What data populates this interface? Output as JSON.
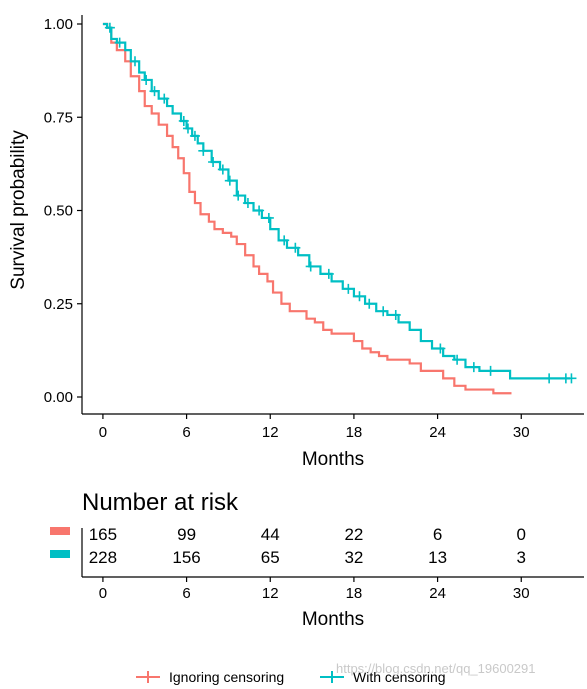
{
  "chart_data": [
    {
      "type": "line",
      "subtype": "kaplan-meier step",
      "xlabel": "Months",
      "ylabel": "Survival probability",
      "xlim": [
        -1.5,
        34.5
      ],
      "ylim": [
        0,
        1
      ],
      "xticks": [
        0,
        6,
        12,
        18,
        24,
        30
      ],
      "yticks": [
        "0.00",
        "0.25",
        "0.50",
        "0.75",
        "1.00"
      ],
      "grid": false,
      "legend_position": "bottom",
      "series": [
        {
          "name": "Ignoring censoring",
          "color": "#F8766D",
          "x": [
            0,
            0.3,
            0.6,
            1.0,
            1.6,
            2.0,
            2.6,
            3.0,
            3.5,
            4.0,
            4.6,
            5.0,
            5.4,
            5.8,
            6.2,
            6.6,
            7.0,
            7.6,
            8.0,
            8.6,
            9.2,
            9.6,
            10.2,
            10.8,
            11.2,
            11.8,
            12.2,
            12.8,
            13.4,
            14.0,
            14.6,
            15.2,
            15.8,
            16.4,
            17.2,
            18.0,
            18.6,
            19.2,
            19.8,
            20.4,
            21.2,
            22.0,
            22.8,
            23.6,
            24.4,
            25.2,
            26.0,
            27.0,
            28.0,
            29.3
          ],
          "y": [
            1.0,
            0.99,
            0.95,
            0.93,
            0.9,
            0.86,
            0.82,
            0.78,
            0.76,
            0.73,
            0.7,
            0.67,
            0.64,
            0.6,
            0.55,
            0.52,
            0.49,
            0.47,
            0.45,
            0.44,
            0.43,
            0.41,
            0.38,
            0.35,
            0.33,
            0.31,
            0.28,
            0.25,
            0.23,
            0.23,
            0.21,
            0.2,
            0.18,
            0.17,
            0.17,
            0.15,
            0.13,
            0.12,
            0.11,
            0.1,
            0.1,
            0.09,
            0.07,
            0.07,
            0.05,
            0.03,
            0.02,
            0.02,
            0.01,
            0.01
          ],
          "censor_x": []
        },
        {
          "name": "With censoring",
          "color": "#00BFC4",
          "x": [
            0,
            0.3,
            0.6,
            1.0,
            1.6,
            2.0,
            2.6,
            3.0,
            3.5,
            4.0,
            4.6,
            5.0,
            5.6,
            6.0,
            6.4,
            6.8,
            7.2,
            7.8,
            8.4,
            9.0,
            9.6,
            10.2,
            10.8,
            11.4,
            12.0,
            12.6,
            13.2,
            14.0,
            14.8,
            15.6,
            16.4,
            17.2,
            18.0,
            18.8,
            19.6,
            20.4,
            21.2,
            22.0,
            22.8,
            23.6,
            24.4,
            25.2,
            26.0,
            27.0,
            28.0,
            29.2,
            30.2,
            31.5,
            33.5
          ],
          "y": [
            1.0,
            0.99,
            0.96,
            0.95,
            0.93,
            0.9,
            0.87,
            0.85,
            0.82,
            0.8,
            0.78,
            0.76,
            0.74,
            0.72,
            0.7,
            0.68,
            0.66,
            0.63,
            0.61,
            0.58,
            0.54,
            0.52,
            0.5,
            0.48,
            0.45,
            0.42,
            0.4,
            0.38,
            0.35,
            0.33,
            0.31,
            0.29,
            0.27,
            0.25,
            0.23,
            0.22,
            0.2,
            0.18,
            0.15,
            0.13,
            0.11,
            0.1,
            0.08,
            0.07,
            0.07,
            0.05,
            0.05,
            0.05,
            0.05
          ],
          "censor_x": [
            0.5,
            1.2,
            2.3,
            3.1,
            3.7,
            4.4,
            5.8,
            6.1,
            6.6,
            7.2,
            7.9,
            8.6,
            9.1,
            9.7,
            10.4,
            11.2,
            11.9,
            13.0,
            13.8,
            14.9,
            16.2,
            17.6,
            18.4,
            19.1,
            20.1,
            21.0,
            24.2,
            25.4,
            26.6,
            27.8,
            32.0,
            33.2,
            33.6
          ]
        }
      ]
    },
    {
      "type": "table",
      "title": "Number at risk",
      "xlabel": "Months",
      "xticks": [
        0,
        6,
        12,
        18,
        24,
        30
      ],
      "rows": [
        {
          "name": "Ignoring censoring",
          "color": "#F8766D",
          "values": [
            "165",
            "99",
            "44",
            "22",
            "6",
            "0"
          ]
        },
        {
          "name": "With censoring",
          "color": "#00BFC4",
          "values": [
            "228",
            "156",
            "65",
            "32",
            "13",
            "3"
          ]
        }
      ]
    }
  ],
  "legend": {
    "items": [
      {
        "label": "Ignoring censoring",
        "color": "#F8766D"
      },
      {
        "label": "With censoring",
        "color": "#00BFC4"
      }
    ]
  },
  "watermark": "https://blog.csdn.net/qq_19600291"
}
